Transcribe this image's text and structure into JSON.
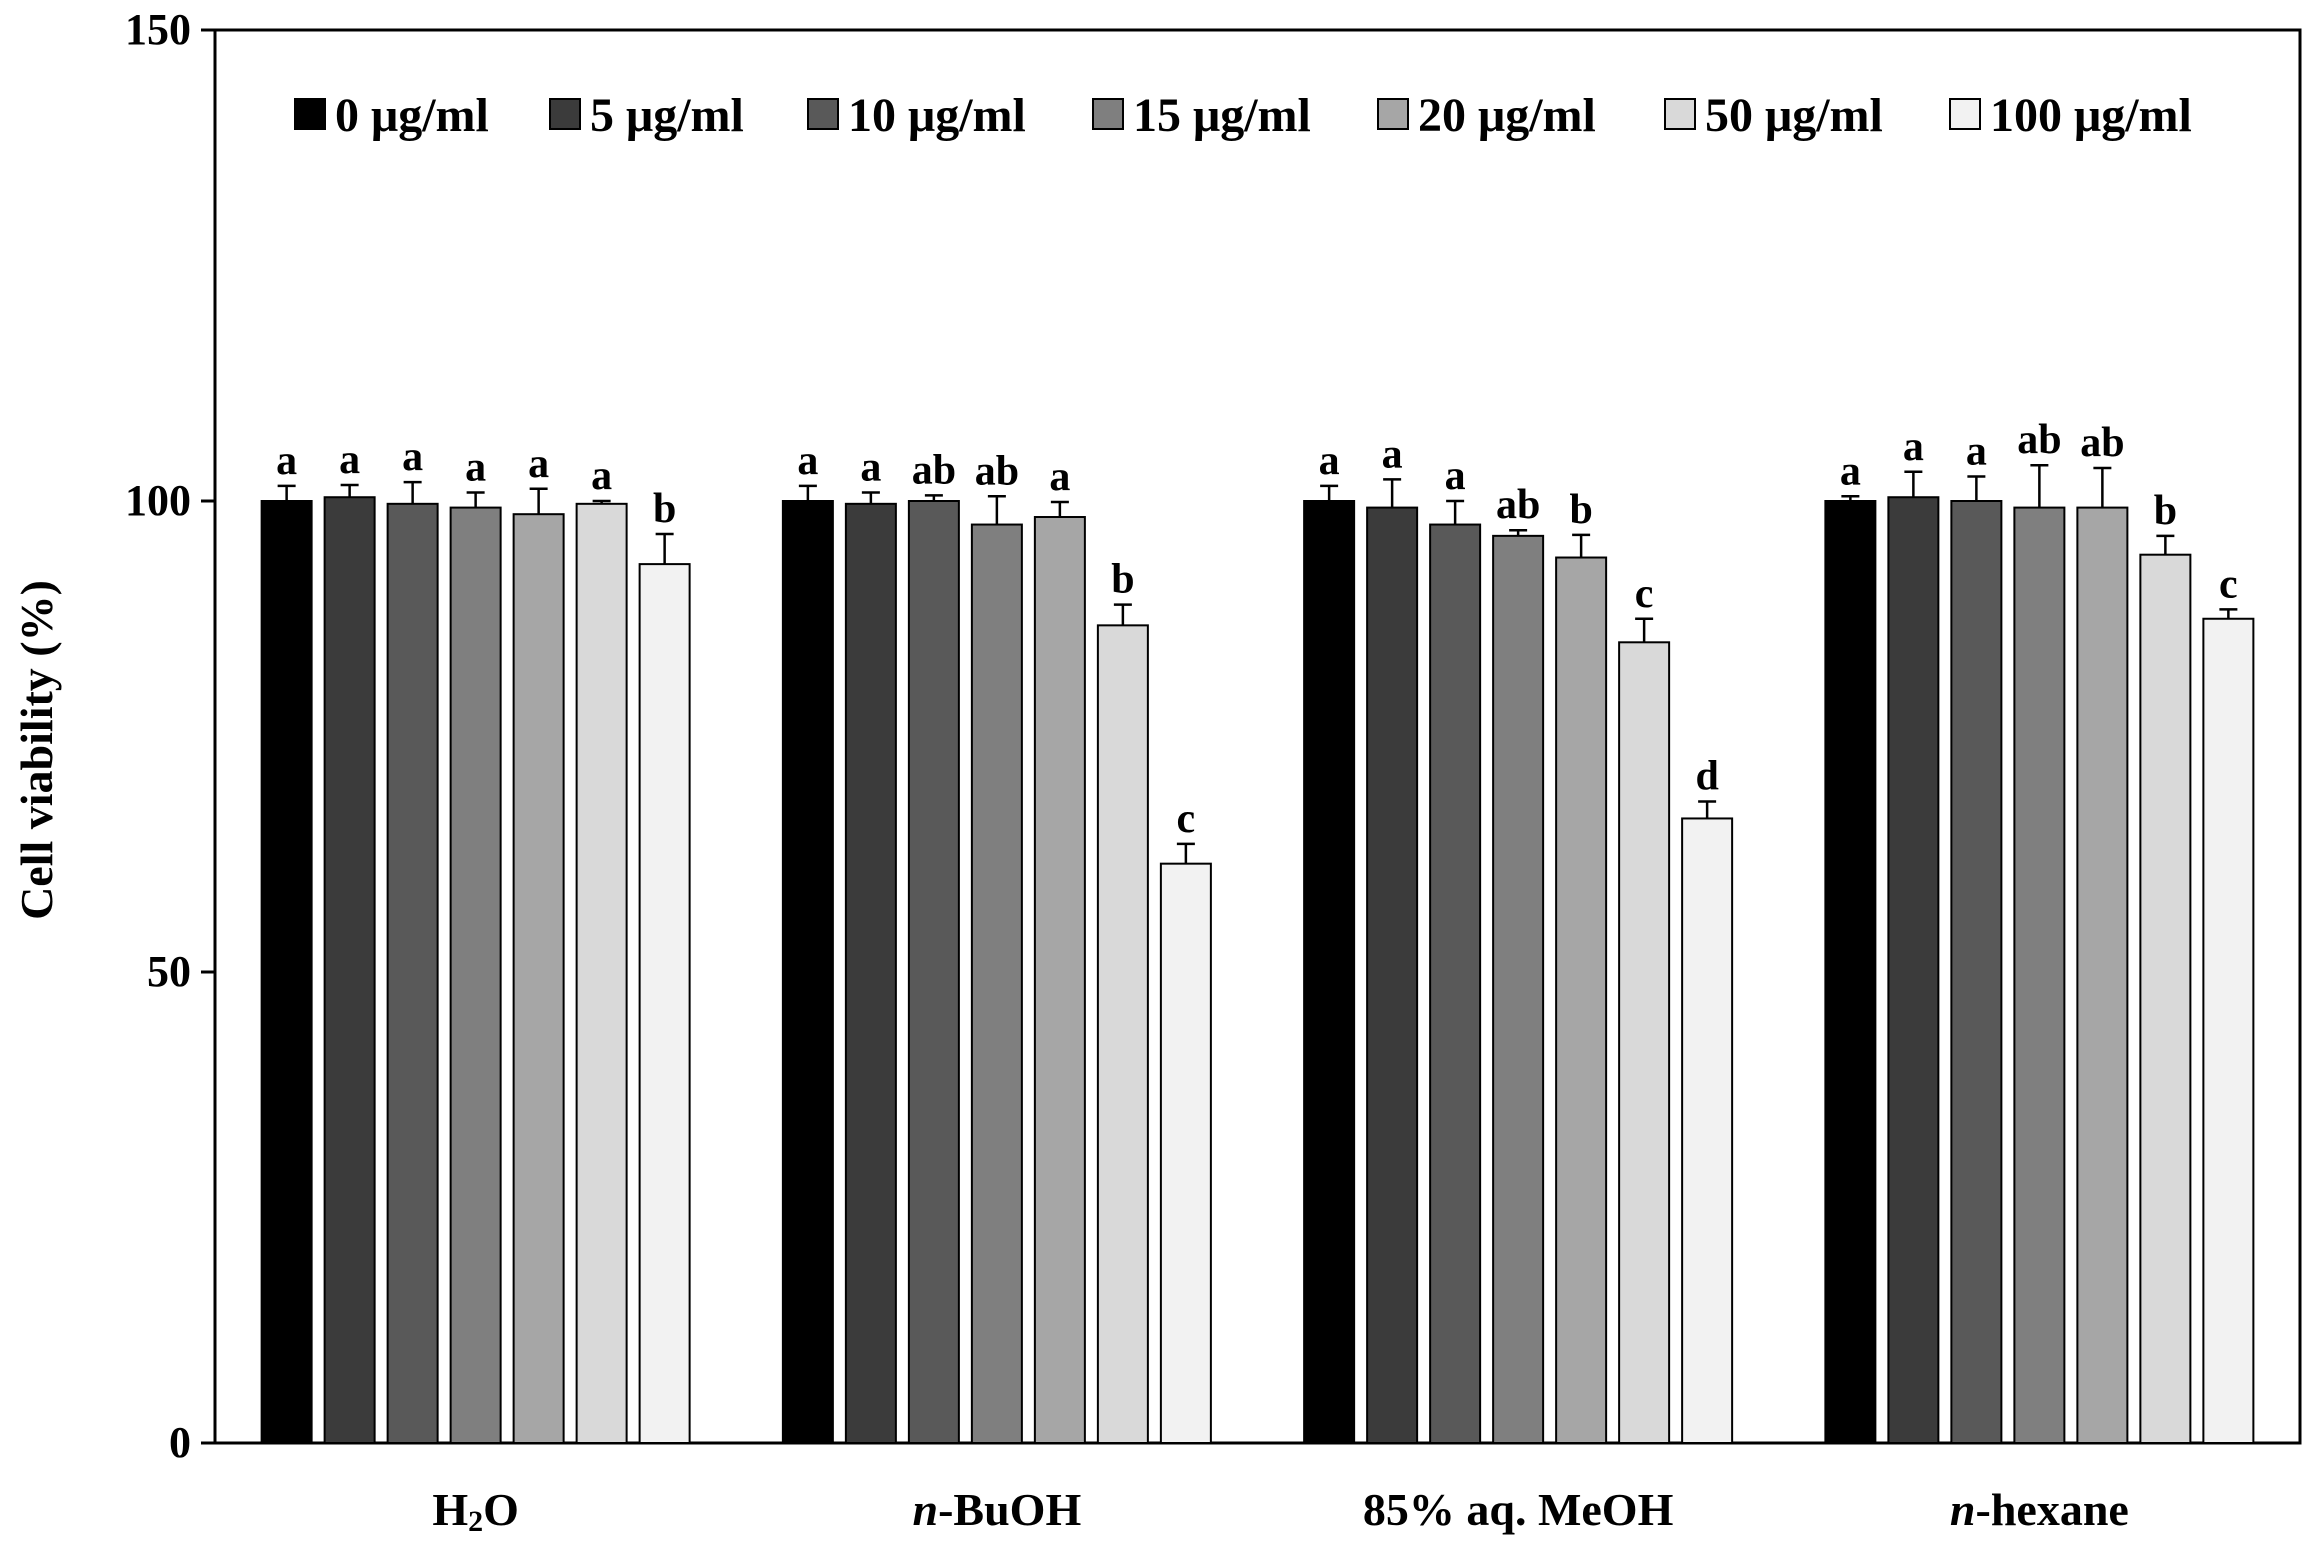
{
  "chart_data": {
    "type": "bar",
    "title": "",
    "xlabel": "",
    "ylabel": "Cell viability (%)",
    "ylim": [
      0,
      150
    ],
    "yticks": [
      0,
      50,
      100,
      150
    ],
    "grid": false,
    "legend_position": "top",
    "categories": [
      "H2O",
      "n-BuOH",
      "85% aq. MeOH",
      "n-hexane"
    ],
    "category_labels": [
      {
        "prefix": "H",
        "sub": "2",
        "suffix": "O",
        "italic_prefix": ""
      },
      {
        "prefix": "",
        "sub": "",
        "suffix": "-BuOH",
        "italic_prefix": "n"
      },
      {
        "prefix": "85% aq. MeOH",
        "sub": "",
        "suffix": "",
        "italic_prefix": ""
      },
      {
        "prefix": "",
        "sub": "",
        "suffix": "-hexane",
        "italic_prefix": "n"
      }
    ],
    "series": [
      {
        "name": "0 μg/ml",
        "color": "#000000",
        "values": [
          100,
          100,
          100,
          100
        ],
        "errors": [
          1.6,
          1.6,
          1.6,
          0.5
        ],
        "letters": [
          "a",
          "a",
          "a",
          "a"
        ]
      },
      {
        "name": "5 μg/ml",
        "color": "#3b3b3b",
        "values": [
          100.4,
          99.7,
          99.3,
          100.4
        ],
        "errors": [
          1.3,
          1.2,
          3.0,
          2.7
        ],
        "letters": [
          "a",
          "a",
          "a",
          "a"
        ]
      },
      {
        "name": "10 μg/ml",
        "color": "#595959",
        "values": [
          99.7,
          100,
          97.5,
          100
        ],
        "errors": [
          2.3,
          0.6,
          2.5,
          2.6
        ],
        "letters": [
          "a",
          "ab",
          "a",
          "a"
        ]
      },
      {
        "name": "15 μg/ml",
        "color": "#7f7f7f",
        "values": [
          99.3,
          97.5,
          96.3,
          99.3
        ],
        "errors": [
          1.6,
          3.0,
          0.6,
          4.5
        ],
        "letters": [
          "a",
          "ab",
          "ab",
          "ab"
        ]
      },
      {
        "name": "20 μg/ml",
        "color": "#a6a6a6",
        "values": [
          98.6,
          98.3,
          94,
          99.3
        ],
        "errors": [
          2.7,
          1.6,
          2.4,
          4.2
        ],
        "letters": [
          "a",
          "a",
          "b",
          "ab"
        ]
      },
      {
        "name": "50 μg/ml",
        "color": "#d9d9d9",
        "values": [
          99.7,
          86.8,
          85,
          94.3
        ],
        "errors": [
          0.3,
          2.2,
          2.5,
          2.0
        ],
        "letters": [
          "a",
          "b",
          "c",
          "b"
        ]
      },
      {
        "name": "100 μg/ml",
        "color": "#f2f2f2",
        "values": [
          93.3,
          61.5,
          66.3,
          87.5
        ],
        "errors": [
          3.2,
          2.1,
          1.8,
          1.0
        ],
        "letters": [
          "b",
          "c",
          "d",
          "c"
        ]
      }
    ]
  }
}
